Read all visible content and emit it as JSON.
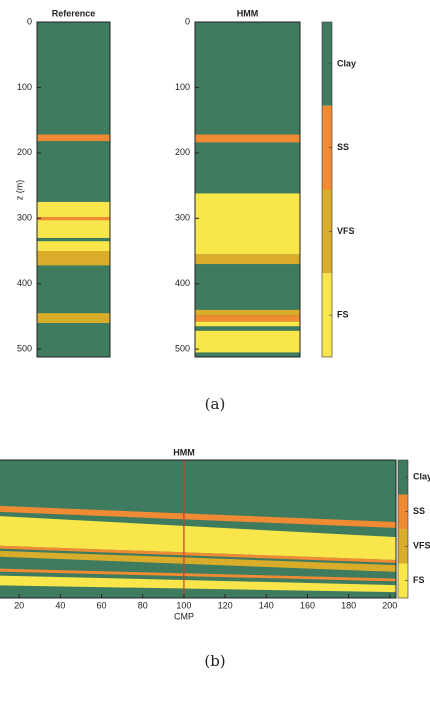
{
  "chart_data": [
    {
      "type": "column",
      "panel_label": "(a)",
      "ylabel": "z (m)",
      "ylim": [
        0,
        512
      ],
      "yticks": [
        0,
        100,
        200,
        300,
        400,
        500
      ],
      "classes": [
        {
          "name": "Clay",
          "color": "#3f7b5e"
        },
        {
          "name": "SS",
          "color": "#f08a33"
        },
        {
          "name": "VFS",
          "color": "#d9ad2a"
        },
        {
          "name": "FS",
          "color": "#f8e64a"
        }
      ],
      "columns": [
        {
          "title": "Reference",
          "background": "#3f7b5e",
          "layers": [
            {
              "top": 172,
              "bottom": 182,
              "color": "#f08a33"
            },
            {
              "top": 275,
              "bottom": 330,
              "color": "#f8e64a"
            },
            {
              "top": 298,
              "bottom": 303,
              "color": "#f08a33"
            },
            {
              "top": 335,
              "bottom": 350,
              "color": "#f8e64a"
            },
            {
              "top": 350,
              "bottom": 372,
              "color": "#d9ad2a"
            },
            {
              "top": 445,
              "bottom": 460,
              "color": "#d9ad2a"
            }
          ]
        },
        {
          "title": "HMM",
          "background": "#3f7b5e",
          "layers": [
            {
              "top": 172,
              "bottom": 184,
              "color": "#f08a33"
            },
            {
              "top": 262,
              "bottom": 355,
              "color": "#f8e64a"
            },
            {
              "top": 355,
              "bottom": 370,
              "color": "#d9ad2a"
            },
            {
              "top": 440,
              "bottom": 448,
              "color": "#d9ad2a"
            },
            {
              "top": 448,
              "bottom": 458,
              "color": "#f08a33"
            },
            {
              "top": 458,
              "bottom": 465,
              "color": "#f8e64a"
            },
            {
              "top": 472,
              "bottom": 505,
              "color": "#f8e64a"
            }
          ]
        }
      ]
    },
    {
      "type": "section",
      "title": "HMM",
      "panel_label": "(b)",
      "xlabel": "CMP",
      "xlim": [
        0,
        203
      ],
      "xticks": [
        20,
        40,
        60,
        80,
        100,
        120,
        140,
        160,
        180,
        200
      ],
      "ylim": [
        0,
        512
      ],
      "background": "#3f7b5e",
      "classes": [
        {
          "name": "Clay",
          "color": "#3f7b5e"
        },
        {
          "name": "SS",
          "color": "#f08a33"
        },
        {
          "name": "VFS",
          "color": "#d9ad2a"
        },
        {
          "name": "FS",
          "color": "#f8e64a"
        }
      ],
      "bands": [
        {
          "top": [
            167,
            230
          ],
          "bottom": [
            189,
            252
          ],
          "color": "#f08a33"
        },
        {
          "top": [
            204,
            286
          ],
          "bottom": [
            315,
            371
          ],
          "color": "#f8e64a"
        },
        {
          "top": [
            315,
            371
          ],
          "bottom": [
            326,
            382
          ],
          "color": "#f08a33"
        },
        {
          "top": [
            334,
            390
          ],
          "bottom": [
            356,
            415
          ],
          "color": "#d9ad2a"
        },
        {
          "top": [
            401,
            440
          ],
          "bottom": [
            412,
            450
          ],
          "color": "#f08a33"
        },
        {
          "top": [
            427,
            464
          ],
          "bottom": [
            464,
            490
          ],
          "color": "#f8e64a"
        }
      ],
      "marker": {
        "x": 100,
        "color": "#d9342b"
      }
    }
  ]
}
